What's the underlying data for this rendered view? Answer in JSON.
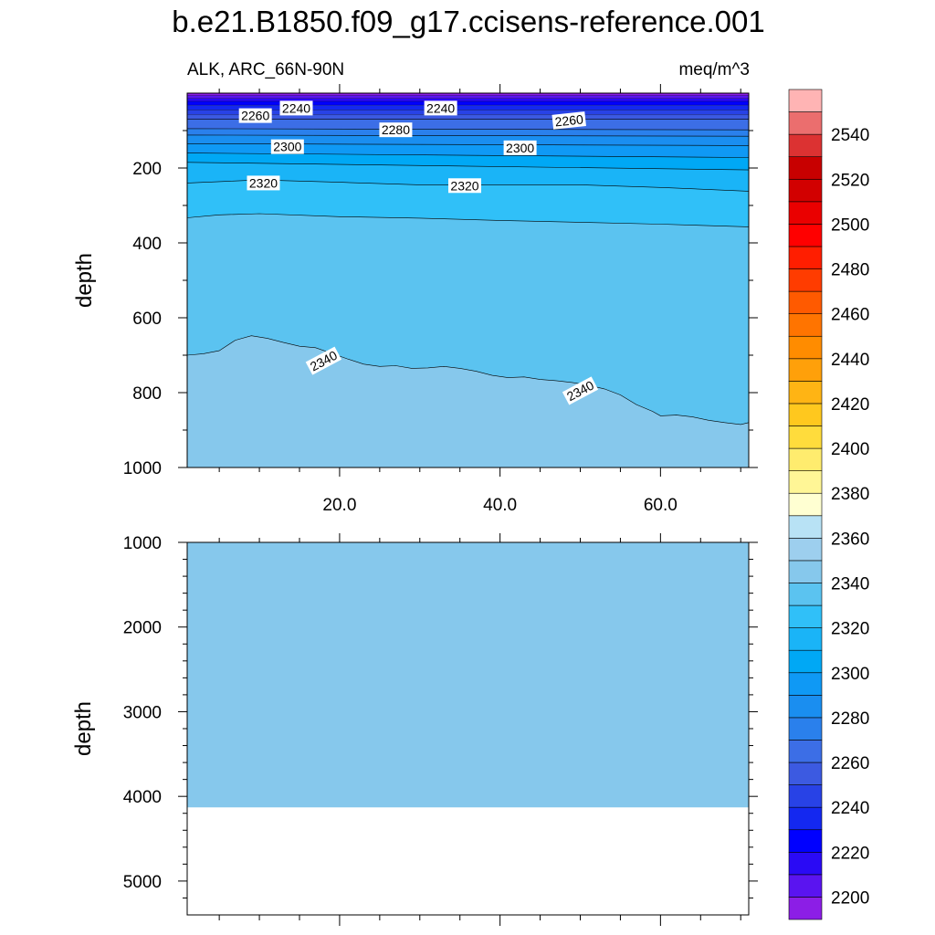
{
  "figure": {
    "title": "b.e21.B1850.f09_g17.ccisens-reference.001",
    "left_string": "ALK, ARC_66N-90N",
    "right_string": "meq/m^3"
  },
  "chart_data": {
    "type": "contour",
    "variable": "ALK",
    "region": "ARC_66N-90N",
    "units": "meq/m^3",
    "x_range": [
      1,
      71
    ],
    "x_ticks": [
      20,
      40,
      60
    ],
    "x_tick_labels": [
      "20.0",
      "40.0",
      "60.0"
    ],
    "colorbar": {
      "levels": [
        2190,
        2200,
        2210,
        2220,
        2230,
        2240,
        2250,
        2260,
        2270,
        2280,
        2290,
        2300,
        2310,
        2320,
        2330,
        2340,
        2350,
        2360,
        2370,
        2380,
        2390,
        2400,
        2410,
        2420,
        2430,
        2440,
        2450,
        2460,
        2470,
        2480,
        2490,
        2500,
        2510,
        2520,
        2530,
        2540,
        2550
      ],
      "labels": [
        "2200",
        "2220",
        "2240",
        "2260",
        "2280",
        "2300",
        "2320",
        "2340",
        "2360",
        "2380",
        "2400",
        "2420",
        "2440",
        "2460",
        "2480",
        "2500",
        "2520",
        "2540"
      ],
      "colors": [
        "#8c1ee6",
        "#5a14f0",
        "#2a0af5",
        "#0000ff",
        "#1428f0",
        "#2842e6",
        "#3c5ae1",
        "#3c6ee6",
        "#2a80ec",
        "#1a8ef0",
        "#0f99f5",
        "#00a8f5",
        "#1ab4f7",
        "#30c0f8",
        "#5bc3f0",
        "#86c8ec",
        "#9dcfee",
        "#b8e2f5",
        "#ffffd2",
        "#fff696",
        "#ffec6e",
        "#ffdc3c",
        "#ffc81e",
        "#ffb414",
        "#ffa00a",
        "#ff8c00",
        "#ff7400",
        "#ff5a00",
        "#ff3c00",
        "#ff1e00",
        "#ff0000",
        "#ea0000",
        "#d20000",
        "#c80000",
        "#dc3232",
        "#eb6e6e",
        "#ffb4b4"
      ]
    },
    "top_panel": {
      "ylabel": "depth",
      "y_range": [
        0,
        1000
      ],
      "y_ticks": [
        200,
        400,
        600,
        800,
        1000
      ],
      "y_tick_labels": [
        "200",
        "400",
        "600",
        "800",
        "1000"
      ],
      "layers": [
        {
          "value": 2260,
          "depth": [
            [
              1,
              70
            ],
            [
              71,
              70
            ]
          ]
        },
        {
          "value": 2270,
          "depth": [
            [
              1,
              95
            ],
            [
              71,
              98
            ]
          ]
        },
        {
          "value": 2280,
          "depth": [
            [
              1,
              112
            ],
            [
              71,
              115
            ]
          ]
        },
        {
          "value": 2290,
          "depth": [
            [
              1,
              135
            ],
            [
              71,
              140
            ]
          ]
        },
        {
          "value": 2300,
          "depth": [
            [
              1,
              160
            ],
            [
              71,
              172
            ]
          ]
        },
        {
          "value": 2310,
          "depth": [
            [
              1,
              185
            ],
            [
              71,
              205
            ]
          ]
        },
        {
          "value": 2320,
          "depth": [
            [
              1,
              240
            ],
            [
              10,
              232
            ],
            [
              20,
              238
            ],
            [
              30,
              245
            ],
            [
              40,
              245
            ],
            [
              50,
              245
            ],
            [
              60,
              252
            ],
            [
              71,
              262
            ]
          ]
        },
        {
          "value": 2330,
          "depth": [
            [
              1,
              333
            ],
            [
              5,
              325
            ],
            [
              10,
              322
            ],
            [
              20,
              330
            ],
            [
              30,
              334
            ],
            [
              40,
              340
            ],
            [
              50,
              345
            ],
            [
              60,
              350
            ],
            [
              71,
              357
            ]
          ]
        },
        {
          "value": 2340,
          "depth": [
            [
              1,
              700
            ],
            [
              3,
              696
            ],
            [
              5,
              688
            ],
            [
              7,
              660
            ],
            [
              9,
              648
            ],
            [
              11,
              655
            ],
            [
              13,
              666
            ],
            [
              15,
              676
            ],
            [
              17,
              680
            ],
            [
              19,
              695
            ],
            [
              21,
              710
            ],
            [
              23,
              724
            ],
            [
              25,
              730
            ],
            [
              27,
              728
            ],
            [
              29,
              735
            ],
            [
              31,
              734
            ],
            [
              33,
              730
            ],
            [
              35,
              735
            ],
            [
              37,
              743
            ],
            [
              39,
              754
            ],
            [
              41,
              760
            ],
            [
              43,
              758
            ],
            [
              45,
              765
            ],
            [
              47,
              768
            ],
            [
              49,
              773
            ],
            [
              51,
              780
            ],
            [
              53,
              790
            ],
            [
              55,
              806
            ],
            [
              57,
              832
            ],
            [
              59,
              850
            ],
            [
              60,
              862
            ],
            [
              62,
              860
            ],
            [
              64,
              865
            ],
            [
              66,
              874
            ],
            [
              68,
              880
            ],
            [
              70,
              885
            ],
            [
              71,
              880
            ]
          ]
        }
      ],
      "contour_labels": [
        {
          "text": "2240",
          "x": 14.6,
          "depth": 40
        },
        {
          "text": "2240",
          "x": 32.6,
          "depth": 40
        },
        {
          "text": "2260",
          "x": 9.5,
          "depth": 60
        },
        {
          "text": "2260",
          "x": 48.6,
          "depth": 73
        },
        {
          "text": "2280",
          "x": 27.0,
          "depth": 98
        },
        {
          "text": "2300",
          "x": 13.5,
          "depth": 143
        },
        {
          "text": "2300",
          "x": 42.5,
          "depth": 146
        },
        {
          "text": "2320",
          "x": 10.5,
          "depth": 240
        },
        {
          "text": "2320",
          "x": 35.6,
          "depth": 247
        },
        {
          "text": "2340",
          "x": 18.0,
          "depth": 715
        },
        {
          "text": "2340",
          "x": 50.0,
          "depth": 795
        }
      ]
    },
    "bottom_panel": {
      "ylabel": "depth",
      "y_range": [
        1000,
        5400
      ],
      "y_ticks": [
        1000,
        2000,
        3000,
        4000,
        5000
      ],
      "y_tick_labels": [
        "1000",
        "2000",
        "3000",
        "4000",
        "5000"
      ],
      "fill_value": 2345,
      "fill_bottom_depth": 4130
    }
  }
}
